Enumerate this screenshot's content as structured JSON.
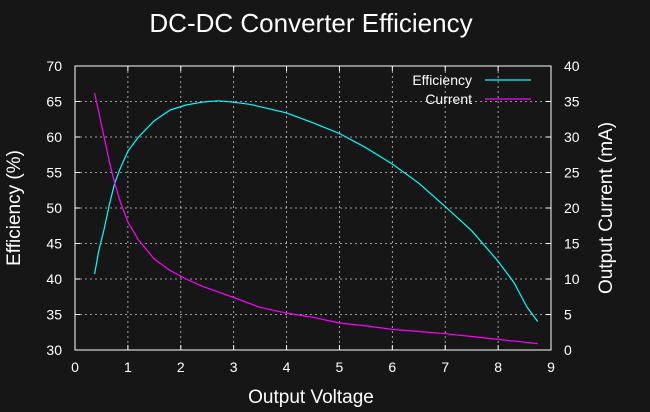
{
  "chart_data": {
    "type": "line",
    "title": "DC-DC Converter Efficiency",
    "xlabel": "Output Voltage",
    "ylabel": "Efficiency (%)",
    "y2label": "Output Current (mA)",
    "xlim": [
      0,
      9
    ],
    "ylim": [
      30,
      70
    ],
    "y2lim": [
      0,
      40
    ],
    "xticks": [
      "0",
      "1",
      "2",
      "3",
      "4",
      "5",
      "6",
      "7",
      "8",
      "9"
    ],
    "yticks": [
      "30",
      "35",
      "40",
      "45",
      "50",
      "55",
      "60",
      "65",
      "70"
    ],
    "y2ticks": [
      "0",
      "5",
      "10",
      "15",
      "20",
      "25",
      "30",
      "35",
      "40"
    ],
    "grid": true,
    "legend_position": "top-right",
    "series": [
      {
        "name": "Efficiency",
        "axis": "left",
        "color": "#00ffff",
        "points": [
          [
            0.37,
            40.7
          ],
          [
            0.45,
            44.0
          ],
          [
            0.55,
            47.0
          ],
          [
            0.65,
            50.5
          ],
          [
            0.75,
            53.5
          ],
          [
            0.85,
            55.5
          ],
          [
            1.0,
            58.0
          ],
          [
            1.2,
            60.0
          ],
          [
            1.5,
            62.3
          ],
          [
            1.8,
            63.8
          ],
          [
            2.1,
            64.5
          ],
          [
            2.4,
            64.9
          ],
          [
            2.7,
            65.1
          ],
          [
            3.0,
            64.9
          ],
          [
            3.3,
            64.6
          ],
          [
            3.6,
            64.1
          ],
          [
            4.0,
            63.4
          ],
          [
            4.5,
            62.0
          ],
          [
            5.0,
            60.5
          ],
          [
            5.5,
            58.5
          ],
          [
            6.0,
            56.2
          ],
          [
            6.5,
            53.5
          ],
          [
            7.0,
            50.2
          ],
          [
            7.5,
            46.8
          ],
          [
            8.0,
            42.5
          ],
          [
            8.3,
            39.5
          ],
          [
            8.55,
            36.0
          ],
          [
            8.75,
            34.0
          ]
        ]
      },
      {
        "name": "Current",
        "axis": "right",
        "color": "#ff00ff",
        "points": [
          [
            0.37,
            36.2
          ],
          [
            0.45,
            33.5
          ],
          [
            0.55,
            30.0
          ],
          [
            0.65,
            26.5
          ],
          [
            0.75,
            23.5
          ],
          [
            0.85,
            21.0
          ],
          [
            1.0,
            18.0
          ],
          [
            1.2,
            15.5
          ],
          [
            1.5,
            12.8
          ],
          [
            1.8,
            11.2
          ],
          [
            2.1,
            10.0
          ],
          [
            2.4,
            9.0
          ],
          [
            2.7,
            8.2
          ],
          [
            3.0,
            7.4
          ],
          [
            3.5,
            6.0
          ],
          [
            4.0,
            5.2
          ],
          [
            4.5,
            4.6
          ],
          [
            5.0,
            3.8
          ],
          [
            5.5,
            3.4
          ],
          [
            6.0,
            2.9
          ],
          [
            6.5,
            2.6
          ],
          [
            7.0,
            2.3
          ],
          [
            7.5,
            1.9
          ],
          [
            8.0,
            1.5
          ],
          [
            8.5,
            1.1
          ],
          [
            8.75,
            0.9
          ]
        ]
      }
    ]
  }
}
